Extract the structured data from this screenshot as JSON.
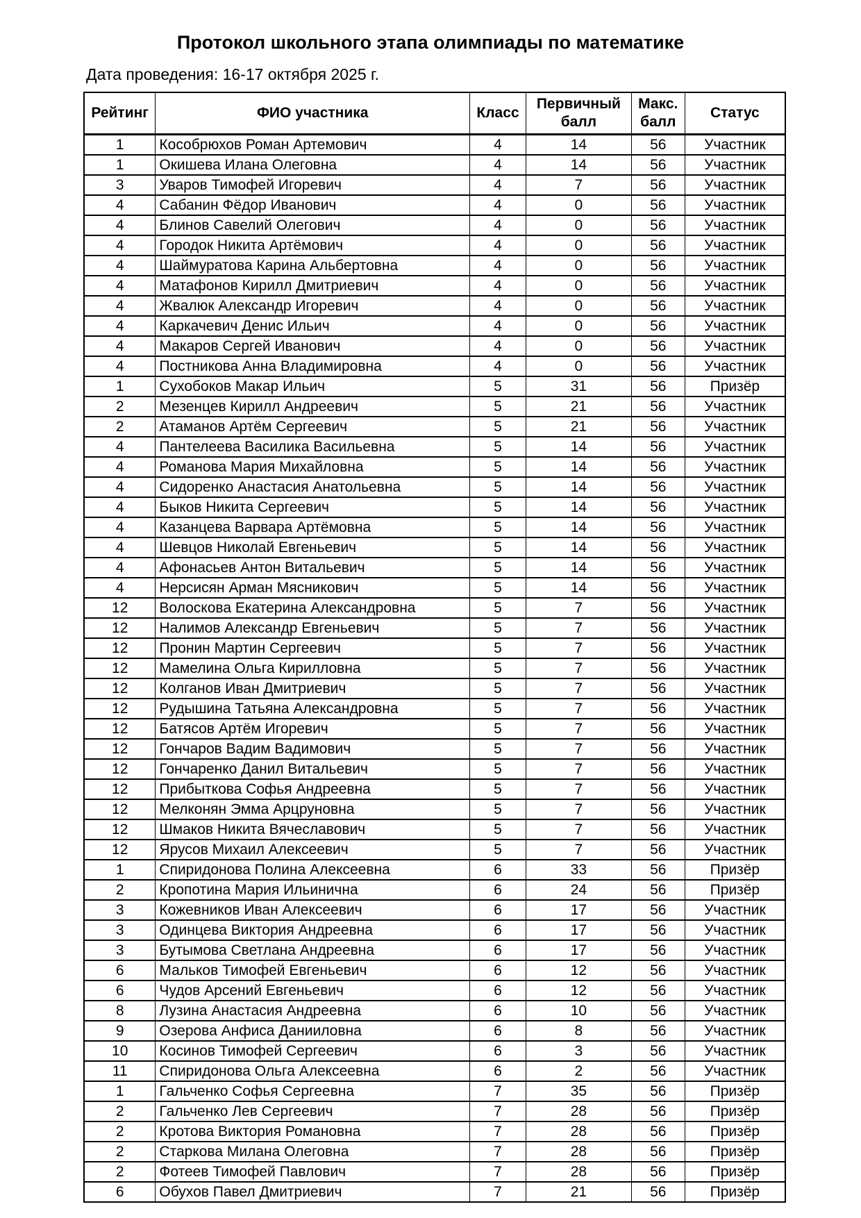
{
  "title": "Протокол школьного этапа олимпиады по математике",
  "date": "Дата проведения: 16-17 октября 2025 г.",
  "columns": [
    "Рейтинг",
    "ФИО участника",
    "Класс",
    "Первичный балл",
    "Макс. балл",
    "Статус"
  ],
  "rows": [
    [
      "1",
      "Кособрюхов Роман Артемович",
      "4",
      "14",
      "56",
      "Участник"
    ],
    [
      "1",
      "Окишева Илана Олеговна",
      "4",
      "14",
      "56",
      "Участник"
    ],
    [
      "3",
      "Уваров Тимофей Игоревич",
      "4",
      "7",
      "56",
      "Участник"
    ],
    [
      "4",
      "Сабанин Фёдор Иванович",
      "4",
      "0",
      "56",
      "Участник"
    ],
    [
      "4",
      "Блинов Савелий Олегович",
      "4",
      "0",
      "56",
      "Участник"
    ],
    [
      "4",
      "Городок Никита Артёмович",
      "4",
      "0",
      "56",
      "Участник"
    ],
    [
      "4",
      "Шаймуратова Карина Альбертовна",
      "4",
      "0",
      "56",
      "Участник"
    ],
    [
      "4",
      "Матафонов Кирилл Дмитриевич",
      "4",
      "0",
      "56",
      "Участник"
    ],
    [
      "4",
      "Жвалюк Александр Игоревич",
      "4",
      "0",
      "56",
      "Участник"
    ],
    [
      "4",
      "Каркачевич Денис Ильич",
      "4",
      "0",
      "56",
      "Участник"
    ],
    [
      "4",
      "Макаров Сергей Иванович",
      "4",
      "0",
      "56",
      "Участник"
    ],
    [
      "4",
      "Постникова Анна Владимировна",
      "4",
      "0",
      "56",
      "Участник"
    ],
    [
      "1",
      "Сухобоков Макар Ильич",
      "5",
      "31",
      "56",
      "Призёр"
    ],
    [
      "2",
      "Мезенцев Кирилл Андреевич",
      "5",
      "21",
      "56",
      "Участник"
    ],
    [
      "2",
      "Атаманов Артём Сергеевич",
      "5",
      "21",
      "56",
      "Участник"
    ],
    [
      "4",
      "Пантелеева Василика Васильевна",
      "5",
      "14",
      "56",
      "Участник"
    ],
    [
      "4",
      "Романова Мария Михайловна",
      "5",
      "14",
      "56",
      "Участник"
    ],
    [
      "4",
      "Сидоренко Анастасия Анатольевна",
      "5",
      "14",
      "56",
      "Участник"
    ],
    [
      "4",
      "Быков Никита Сергеевич",
      "5",
      "14",
      "56",
      "Участник"
    ],
    [
      "4",
      "Казанцева Варвара Артёмовна",
      "5",
      "14",
      "56",
      "Участник"
    ],
    [
      "4",
      "Шевцов Николай Евгеньевич",
      "5",
      "14",
      "56",
      "Участник"
    ],
    [
      "4",
      "Афонасьев Антон Витальевич",
      "5",
      "14",
      "56",
      "Участник"
    ],
    [
      "4",
      "Нерсисян Арман Мясникович",
      "5",
      "14",
      "56",
      "Участник"
    ],
    [
      "12",
      "Волоскова Екатерина Александровна",
      "5",
      "7",
      "56",
      "Участник"
    ],
    [
      "12",
      "Налимов Александр Евгеньевич",
      "5",
      "7",
      "56",
      "Участник"
    ],
    [
      "12",
      "Пронин Мартин Сергеевич",
      "5",
      "7",
      "56",
      "Участник"
    ],
    [
      "12",
      "Мамелина Ольга Кирилловна",
      "5",
      "7",
      "56",
      "Участник"
    ],
    [
      "12",
      "Колганов Иван Дмитриевич",
      "5",
      "7",
      "56",
      "Участник"
    ],
    [
      "12",
      "Рудышина Татьяна Александровна",
      "5",
      "7",
      "56",
      "Участник"
    ],
    [
      "12",
      "Батясов Артём Игоревич",
      "5",
      "7",
      "56",
      "Участник"
    ],
    [
      "12",
      "Гончаров Вадим Вадимович",
      "5",
      "7",
      "56",
      "Участник"
    ],
    [
      "12",
      "Гончаренко Данил Витальевич",
      "5",
      "7",
      "56",
      "Участник"
    ],
    [
      "12",
      "Прибыткова Софья Андреевна",
      "5",
      "7",
      "56",
      "Участник"
    ],
    [
      "12",
      "Мелконян Эмма Арцруновна",
      "5",
      "7",
      "56",
      "Участник"
    ],
    [
      "12",
      "Шмаков Никита Вячеславович",
      "5",
      "7",
      "56",
      "Участник"
    ],
    [
      "12",
      "Ярусов Михаил Алексеевич",
      "5",
      "7",
      "56",
      "Участник"
    ],
    [
      "1",
      "Спиридонова Полина Алексеевна",
      "6",
      "33",
      "56",
      "Призёр"
    ],
    [
      "2",
      "Кропотина Мария Ильинична",
      "6",
      "24",
      "56",
      "Призёр"
    ],
    [
      "3",
      "Кожевников Иван Алексеевич",
      "6",
      "17",
      "56",
      "Участник"
    ],
    [
      "3",
      "Одинцева Виктория Андреевна",
      "6",
      "17",
      "56",
      "Участник"
    ],
    [
      "3",
      "Бутымова Светлана Андреевна",
      "6",
      "17",
      "56",
      "Участник"
    ],
    [
      "6",
      "Мальков Тимофей Евгеньевич",
      "6",
      "12",
      "56",
      "Участник"
    ],
    [
      "6",
      "Чудов Арсений Евгеньевич",
      "6",
      "12",
      "56",
      "Участник"
    ],
    [
      "8",
      "Лузина Анастасия Андреевна",
      "6",
      "10",
      "56",
      "Участник"
    ],
    [
      "9",
      "Озерова Анфиса Данииловна",
      "6",
      "8",
      "56",
      "Участник"
    ],
    [
      "10",
      "Косинов Тимофей Сергеевич",
      "6",
      "3",
      "56",
      "Участник"
    ],
    [
      "11",
      "Спиридонова Ольга Алексеевна",
      "6",
      "2",
      "56",
      "Участник"
    ],
    [
      "1",
      "Гальченко Софья Сергеевна",
      "7",
      "35",
      "56",
      "Призёр"
    ],
    [
      "2",
      "Гальченко Лев Сергеевич",
      "7",
      "28",
      "56",
      "Призёр"
    ],
    [
      "2",
      "Кротова Виктория Романовна",
      "7",
      "28",
      "56",
      "Призёр"
    ],
    [
      "2",
      "Старкова Милана Олеговна",
      "7",
      "28",
      "56",
      "Призёр"
    ],
    [
      "2",
      "Фотеев Тимофей Павлович",
      "7",
      "28",
      "56",
      "Призёр"
    ],
    [
      "6",
      "Обухов Павел Дмитриевич",
      "7",
      "21",
      "56",
      "Призёр"
    ]
  ]
}
